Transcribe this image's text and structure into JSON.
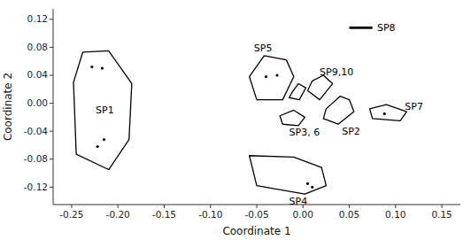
{
  "chart_data": {
    "type": "polygon",
    "xlabel": "Coordinate 1",
    "ylabel": "Coordinate 2",
    "xlim": [
      -0.27,
      0.17
    ],
    "ylim": [
      -0.145,
      0.135
    ],
    "xticks": [
      -0.25,
      {
        "value": -0.2,
        "label": "-0.20"
      },
      -0.15,
      {
        "value": -0.1,
        "label": "-0.10"
      },
      -0.05,
      {
        "value": 0,
        "label": "0.00"
      },
      0.05,
      {
        "value": 0.1,
        "label": "0.10"
      },
      0.15
    ],
    "yticks": [
      -0.12,
      -0.08,
      -0.04,
      {
        "value": 0,
        "label": "0.00"
      },
      0.04,
      0.08,
      0.12
    ],
    "color": "black",
    "polygons": [
      {
        "coords": [
          [
            -0.238,
            0.073
          ],
          [
            -0.21,
            0.075
          ],
          [
            -0.185,
            0.028
          ],
          [
            -0.188,
            -0.052
          ],
          [
            -0.21,
            -0.095
          ],
          [
            -0.245,
            -0.073
          ],
          [
            -0.248,
            0.03
          ]
        ],
        "points": [
          [
            -0.228,
            0.052
          ],
          [
            -0.217,
            0.05
          ],
          [
            -0.215,
            -0.052
          ],
          [
            -0.222,
            -0.062
          ]
        ],
        "label": "SP1",
        "label_x": -0.224,
        "label_y": -0.01
      },
      {
        "coords": [
          [
            -0.042,
            0.068
          ],
          [
            -0.018,
            0.062
          ],
          [
            -0.01,
            0.038
          ],
          [
            -0.022,
            0.005
          ],
          [
            -0.05,
            0.005
          ],
          [
            -0.058,
            0.038
          ]
        ],
        "points": [
          [
            -0.04,
            0.038
          ],
          [
            -0.028,
            0.04
          ]
        ],
        "label": "SP5",
        "label_x": -0.053,
        "label_y": 0.078
      },
      {
        "coords": [
          [
            0.01,
            0.032
          ],
          [
            0.022,
            0.04
          ],
          [
            0.032,
            0.028
          ],
          [
            0.018,
            0.005
          ],
          [
            0.005,
            0.018
          ]
        ],
        "points": [],
        "label": "SP9,10",
        "label_x": 0.018,
        "label_y": 0.045
      },
      {
        "coords": [
          [
            -0.012,
            0.015
          ],
          [
            -0.005,
            0.028
          ],
          [
            0.003,
            0.022
          ],
          [
            -0.004,
            0.005
          ],
          [
            -0.015,
            0.008
          ]
        ],
        "points": []
      },
      {
        "coords": [
          [
            -0.025,
            -0.018
          ],
          [
            -0.01,
            -0.01
          ],
          [
            0.002,
            -0.02
          ],
          [
            -0.005,
            -0.032
          ],
          [
            -0.022,
            -0.03
          ]
        ],
        "points": [],
        "label": "SP3, 6",
        "label_x": -0.015,
        "label_y": -0.042
      },
      {
        "coords": [
          [
            0.025,
            -0.008
          ],
          [
            0.04,
            0.01
          ],
          [
            0.05,
            0.005
          ],
          [
            0.055,
            -0.012
          ],
          [
            0.038,
            -0.03
          ],
          [
            0.022,
            -0.022
          ]
        ],
        "points": [],
        "label": "SP2",
        "label_x": 0.042,
        "label_y": -0.04
      },
      {
        "coords": [
          [
            0.072,
            -0.008
          ],
          [
            0.09,
            -0.002
          ],
          [
            0.112,
            -0.012
          ],
          [
            0.105,
            -0.025
          ],
          [
            0.075,
            -0.022
          ]
        ],
        "points": [
          [
            0.088,
            -0.015
          ]
        ],
        "label": "SP7",
        "label_x": 0.11,
        "label_y": -0.005
      },
      {
        "coords": [
          [
            -0.058,
            -0.075
          ],
          [
            -0.01,
            -0.077
          ],
          [
            0.02,
            -0.092
          ],
          [
            0.025,
            -0.118
          ],
          [
            0.002,
            -0.13
          ],
          [
            -0.05,
            -0.118
          ]
        ],
        "points": [
          [
            0.005,
            -0.115
          ],
          [
            0.01,
            -0.12
          ]
        ],
        "label": "SP4",
        "label_x": -0.015,
        "label_y": -0.14
      }
    ],
    "lines": [
      {
        "x": [
          0.05,
          0.075
        ],
        "y": [
          0.108,
          0.108
        ],
        "label": "SP8",
        "label_x": 0.08,
        "label_y": 0.108
      }
    ]
  }
}
